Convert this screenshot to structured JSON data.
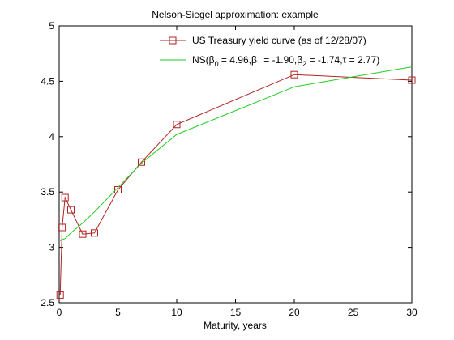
{
  "chart_data": {
    "type": "line",
    "title": "Nelson-Siegel approximation: example",
    "xlabel": "Maturity, years",
    "ylabel": "",
    "xlim": [
      0,
      30
    ],
    "ylim": [
      2.5,
      5
    ],
    "xticks": [
      0,
      5,
      10,
      15,
      20,
      25,
      30
    ],
    "yticks": [
      2.5,
      3,
      3.5,
      4,
      4.5,
      5
    ],
    "xtick_labels": [
      "0",
      "5",
      "10",
      "15",
      "20",
      "25",
      "30"
    ],
    "ytick_labels": [
      "2.5",
      "3",
      "3.5",
      "4",
      "4.5",
      "5"
    ],
    "grid": false,
    "legend_position": "top-right",
    "legend": {
      "series1_label": "US Treasury yield curve (as of 12/28/07)",
      "series2_parts": {
        "p1": "NS(β",
        "s1": "0",
        "p2": " = 4.96,β",
        "s2": "1",
        "p3": " = -1.90,β",
        "s3": "2",
        "p4": " = -1.74,τ = 2.77)"
      }
    },
    "series": [
      {
        "name": "US Treasury yield curve (as of 12/28/07)",
        "color": "#b22222",
        "marker": "square",
        "x": [
          0.083,
          0.25,
          0.5,
          1,
          2,
          3,
          5,
          7,
          10,
          20,
          30
        ],
        "y": [
          2.57,
          3.18,
          3.45,
          3.34,
          3.12,
          3.13,
          3.52,
          3.77,
          4.11,
          4.56,
          4.51
        ]
      },
      {
        "name": "NS(β0 = 4.96,β1 = -1.90,β2 = -1.74,τ = 2.77)",
        "color": "#22cc22",
        "marker": "none",
        "x": [
          0.083,
          0.25,
          0.5,
          1,
          2,
          3,
          5,
          7,
          10,
          20,
          30
        ],
        "y": [
          3.06,
          3.07,
          3.08,
          3.13,
          3.22,
          3.32,
          3.54,
          3.76,
          4.02,
          4.45,
          4.63
        ]
      }
    ]
  }
}
